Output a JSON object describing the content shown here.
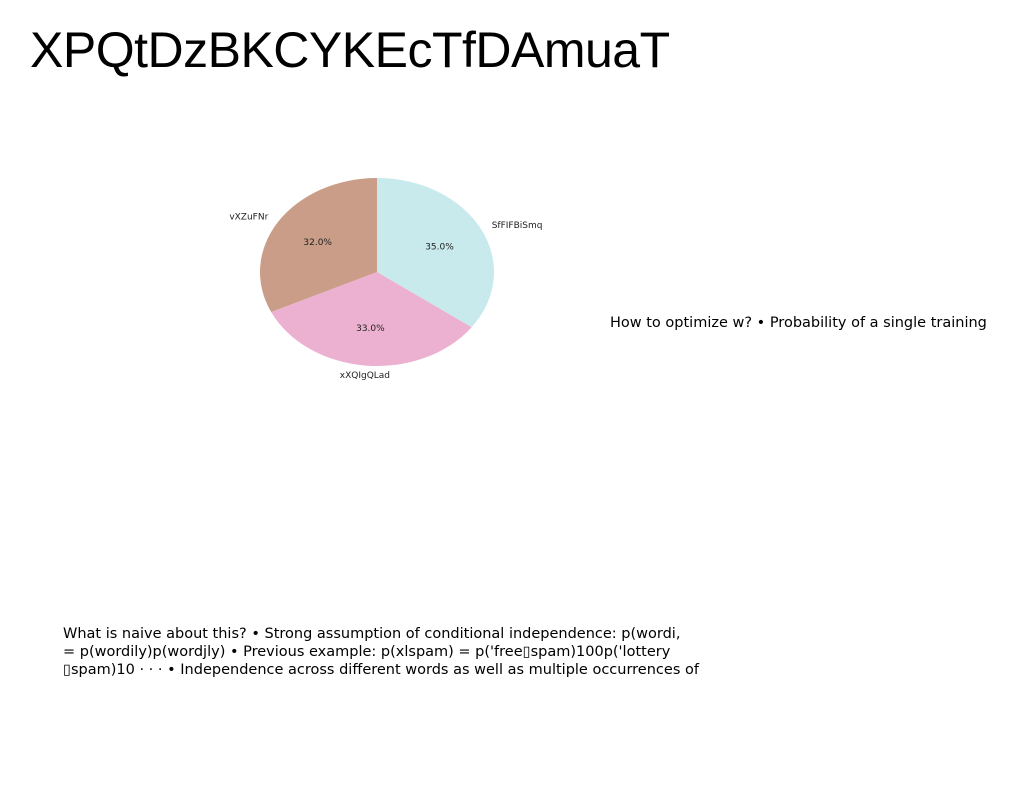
{
  "slide": {
    "title": "XPQtDzBKCYKEcTfDAmuaT",
    "side_text": "How to optimize w? • Probability of a single training",
    "body_lines": [
      "What is naive about this? • Strong assumption of conditional independence: p(wordi,",
      "= p(wordily)p(wordjly) • Previous example: p(xlspam) = p('free▯spam)100p('lottery",
      "▯spam)10 · · · • Independence across different words as well as multiple occurrences of"
    ]
  },
  "chart_data": {
    "type": "pie",
    "title": "",
    "slices": [
      {
        "label": "SfFIFBiSmq",
        "value": 35.0,
        "pct_label": "35.0%",
        "color": "#c8eaec"
      },
      {
        "label": "xXQIgQLad",
        "value": 33.0,
        "pct_label": "33.0%",
        "color": "#ecb0d0"
      },
      {
        "label": "vXZuFNr",
        "value": 32.0,
        "pct_label": "32.0%",
        "color": "#c99d88"
      }
    ],
    "start_angle_deg": 90,
    "direction": "clockwise",
    "legend": "none"
  }
}
